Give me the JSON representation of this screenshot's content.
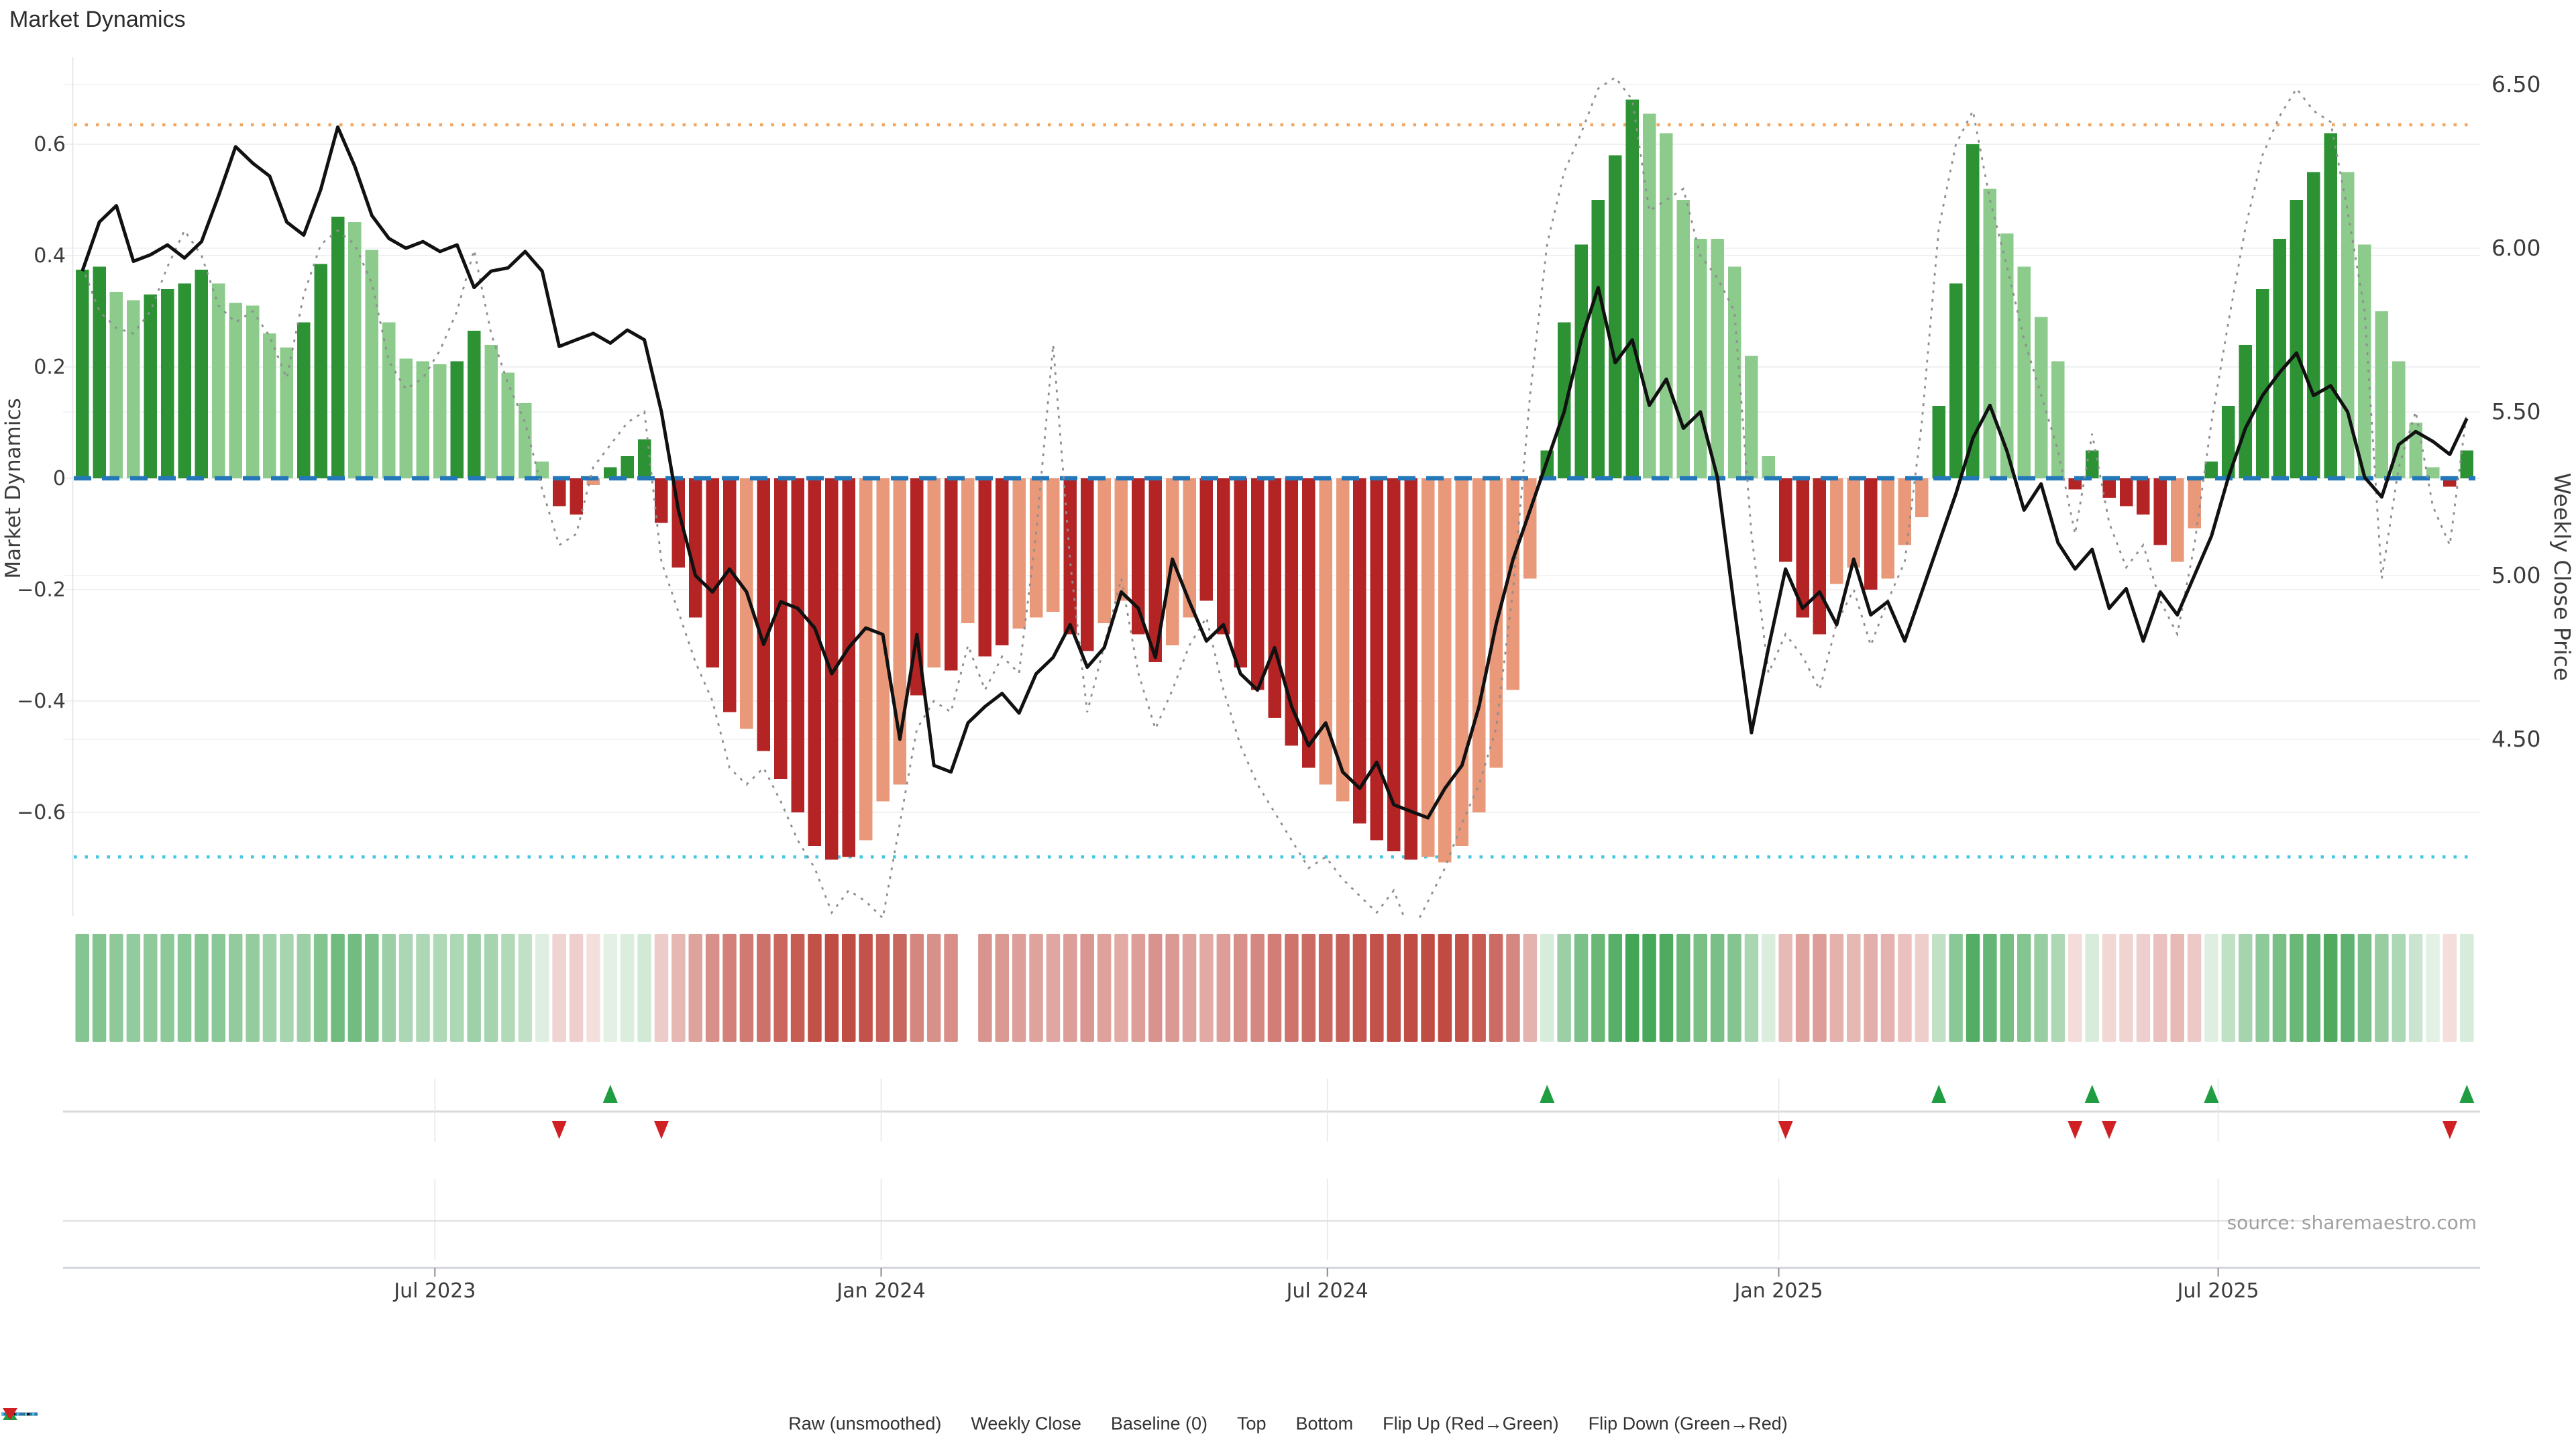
{
  "title": "Market Dynamics",
  "source": "source: sharemaestro.com",
  "axes": {
    "left_title": "Market Dynamics",
    "right_title": "Weekly Close Price",
    "left_ticks": [
      0.6,
      0.4,
      0.2,
      0,
      -0.2,
      -0.4,
      -0.6
    ],
    "right_ticks": [
      6.5,
      6.0,
      5.5,
      5.0,
      4.5
    ]
  },
  "legend": [
    {
      "type": "raw",
      "label": "Raw (unsmoothed)",
      "color": "#8e8e8e"
    },
    {
      "type": "close",
      "label": "Weekly Close",
      "color": "#111111"
    },
    {
      "type": "baseline",
      "label": "Baseline (0)",
      "color": "#2478ba"
    },
    {
      "type": "top",
      "label": "Top",
      "color": "#f3a55f"
    },
    {
      "type": "bottom",
      "label": "Bottom",
      "color": "#41c7e2"
    },
    {
      "type": "flip_up",
      "label": "Flip Up (Red→Green)",
      "color": "#1f9d40"
    },
    {
      "type": "flip_down",
      "label": "Flip Down (Green→Red)",
      "color": "#cf2124"
    }
  ],
  "colors": {
    "bar_green_dark": "#2c9234",
    "bar_green_light": "#8ccb8c",
    "bar_red_dark": "#b42425",
    "bar_red_light": "#e99879",
    "raw_line": "#8e8e8e",
    "close_line": "#111111",
    "baseline": "#2478ba",
    "top_line": "#f3a55f",
    "bottom_line": "#41c7e2",
    "flip_up": "#1f9d40",
    "flip_down": "#cf2124",
    "heat_green_strong": "#3fa352",
    "heat_green_weak": "#eaf5ec",
    "heat_red_strong": "#bf4940",
    "heat_red_weak": "#f6e4e2",
    "grid": "#e9ebee",
    "axis_text": "#3c3c3c",
    "source_text": "#a0a0a0"
  },
  "chart_data": {
    "type": "combo-bar-line",
    "weeks": 141,
    "x_axis": {
      "ticks": [
        {
          "label": "Jul 2023",
          "week": 20.7
        },
        {
          "label": "Jan 2024",
          "week": 46.9
        },
        {
          "label": "Jul 2024",
          "week": 73.1
        },
        {
          "label": "Jan 2025",
          "week": 99.6
        },
        {
          "label": "Jul 2025",
          "week": 125.4
        }
      ]
    },
    "left_axis": {
      "title": "Market Dynamics",
      "ticks": [
        0.6,
        0.4,
        0.2,
        0,
        -0.2,
        -0.4,
        -0.6
      ],
      "range": [
        -0.78,
        0.75
      ]
    },
    "right_axis": {
      "title": "Weekly Close Price",
      "ticks": [
        6.5,
        6.0,
        5.5,
        5.0,
        4.5
      ],
      "range": [
        4.2,
        6.7
      ]
    },
    "reference_lines": {
      "baseline": 0,
      "top": 0.635,
      "bottom": -0.68
    },
    "series": [
      {
        "name": "Market Dynamics (smoothed)",
        "type": "bar",
        "axis": "left",
        "values": [
          0.375,
          0.38,
          0.335,
          0.32,
          0.33,
          0.34,
          0.35,
          0.375,
          0.35,
          0.315,
          0.31,
          0.26,
          0.235,
          0.28,
          0.385,
          0.47,
          0.46,
          0.41,
          0.28,
          0.215,
          0.21,
          0.205,
          0.21,
          0.265,
          0.24,
          0.19,
          0.135,
          0.03,
          -0.05,
          -0.065,
          -0.012,
          0.02,
          0.04,
          0.07,
          -0.08,
          -0.16,
          -0.25,
          -0.34,
          -0.42,
          -0.45,
          -0.49,
          -0.54,
          -0.6,
          -0.66,
          -0.685,
          -0.68,
          -0.65,
          -0.58,
          -0.55,
          -0.39,
          -0.34,
          -0.345,
          -0.26,
          -0.32,
          -0.3,
          -0.27,
          -0.25,
          -0.24,
          -0.28,
          -0.31,
          -0.26,
          -0.22,
          -0.28,
          -0.33,
          -0.3,
          -0.25,
          -0.22,
          -0.28,
          -0.34,
          -0.38,
          -0.43,
          -0.48,
          -0.52,
          -0.55,
          -0.58,
          -0.62,
          -0.65,
          -0.67,
          -0.685,
          -0.68,
          -0.69,
          -0.66,
          -0.6,
          -0.52,
          -0.38,
          -0.18,
          0.05,
          0.28,
          0.42,
          0.5,
          0.58,
          0.68,
          0.655,
          0.62,
          0.5,
          0.43,
          0.43,
          0.38,
          0.22,
          0.04,
          -0.15,
          -0.25,
          -0.28,
          -0.19,
          -0.16,
          -0.2,
          -0.18,
          -0.12,
          -0.07,
          0.13,
          0.35,
          0.6,
          0.52,
          0.44,
          0.38,
          0.29,
          0.21,
          -0.02,
          0.05,
          -0.035,
          -0.05,
          -0.065,
          -0.12,
          -0.15,
          -0.09,
          0.03,
          0.13,
          0.24,
          0.34,
          0.43,
          0.5,
          0.55,
          0.62,
          0.55,
          0.42,
          0.3,
          0.21,
          0.1,
          0.02,
          -0.015,
          0.05
        ],
        "shade_segments": [
          "ddllddddllllldddllllllddllll",
          "ddlddd",
          "dddddldddddd",
          "lll",
          "d",
          "ldld",
          "dlll",
          "ddll",
          "ddll",
          "ddddddd",
          "ll",
          "dddd",
          "lllllll",
          "ddddddllllllll",
          "dddlldlll",
          "dddlllll",
          "ddddddll",
          "ddddddddllllll",
          "dd"
        ]
      },
      {
        "name": "Raw (unsmoothed)",
        "type": "line",
        "axis": "left",
        "values": [
          0.38,
          0.3,
          0.27,
          0.26,
          0.3,
          0.38,
          0.445,
          0.4,
          0.31,
          0.28,
          0.3,
          0.255,
          0.18,
          0.33,
          0.42,
          0.445,
          0.42,
          0.35,
          0.21,
          0.16,
          0.18,
          0.23,
          0.3,
          0.41,
          0.26,
          0.17,
          0.1,
          -0.02,
          -0.12,
          -0.1,
          0.02,
          0.06,
          0.1,
          0.12,
          -0.15,
          -0.24,
          -0.33,
          -0.4,
          -0.52,
          -0.55,
          -0.52,
          -0.58,
          -0.65,
          -0.7,
          -0.78,
          -0.74,
          -0.76,
          -0.79,
          -0.62,
          -0.45,
          -0.4,
          -0.42,
          -0.3,
          -0.38,
          -0.32,
          -0.35,
          -0.1,
          0.24,
          -0.15,
          -0.42,
          -0.3,
          -0.18,
          -0.35,
          -0.45,
          -0.38,
          -0.3,
          -0.25,
          -0.38,
          -0.48,
          -0.55,
          -0.6,
          -0.65,
          -0.7,
          -0.68,
          -0.72,
          -0.75,
          -0.78,
          -0.74,
          -0.82,
          -0.76,
          -0.7,
          -0.62,
          -0.55,
          -0.45,
          -0.2,
          0.15,
          0.42,
          0.55,
          0.62,
          0.7,
          0.72,
          0.68,
          0.48,
          0.5,
          0.52,
          0.4,
          0.36,
          0.3,
          -0.1,
          -0.35,
          -0.28,
          -0.32,
          -0.38,
          -0.26,
          -0.2,
          -0.3,
          -0.22,
          -0.15,
          0.1,
          0.45,
          0.6,
          0.66,
          0.5,
          0.38,
          0.25,
          0.15,
          0.05,
          -0.1,
          0.08,
          -0.08,
          -0.16,
          -0.12,
          -0.22,
          -0.28,
          -0.12,
          0.1,
          0.28,
          0.45,
          0.58,
          0.65,
          0.7,
          0.66,
          0.64,
          0.48,
          0.3,
          -0.18,
          0.02,
          0.12,
          -0.05,
          -0.12,
          0.12
        ]
      },
      {
        "name": "Weekly Close",
        "type": "line",
        "axis": "right",
        "values": [
          5.93,
          6.08,
          6.13,
          5.96,
          5.98,
          6.01,
          5.97,
          6.02,
          6.16,
          6.31,
          6.26,
          6.22,
          6.08,
          6.04,
          6.18,
          6.37,
          6.25,
          6.1,
          6.03,
          6.0,
          6.02,
          5.99,
          6.01,
          5.88,
          5.93,
          5.94,
          5.99,
          5.93,
          5.7,
          5.72,
          5.74,
          5.71,
          5.75,
          5.72,
          5.5,
          5.2,
          5.0,
          4.95,
          5.02,
          4.95,
          4.79,
          4.92,
          4.9,
          4.84,
          4.7,
          4.78,
          4.84,
          4.82,
          4.5,
          4.82,
          4.42,
          4.4,
          4.55,
          4.6,
          4.64,
          4.58,
          4.7,
          4.75,
          4.85,
          4.72,
          4.78,
          4.95,
          4.9,
          4.75,
          5.05,
          4.92,
          4.8,
          4.85,
          4.7,
          4.65,
          4.78,
          4.6,
          4.48,
          4.55,
          4.4,
          4.35,
          4.43,
          4.3,
          4.28,
          4.26,
          4.35,
          4.42,
          4.6,
          4.85,
          5.05,
          5.2,
          5.35,
          5.5,
          5.72,
          5.88,
          5.65,
          5.72,
          5.52,
          5.6,
          5.45,
          5.5,
          5.3,
          4.9,
          4.52,
          4.78,
          5.02,
          4.9,
          4.95,
          4.85,
          5.05,
          4.88,
          4.92,
          4.8,
          4.95,
          5.1,
          5.25,
          5.42,
          5.52,
          5.38,
          5.2,
          5.28,
          5.1,
          5.02,
          5.08,
          4.9,
          4.96,
          4.8,
          4.95,
          4.88,
          5.0,
          5.12,
          5.3,
          5.45,
          5.55,
          5.62,
          5.68,
          5.55,
          5.58,
          5.5,
          5.3,
          5.24,
          5.4,
          5.44,
          5.41,
          5.37,
          5.48
        ]
      }
    ],
    "heatmap": {
      "gap_index": 52
    },
    "flips": {
      "up": [
        31,
        86,
        109,
        118,
        125,
        140
      ],
      "down": [
        28,
        34,
        100,
        117,
        119,
        139
      ]
    }
  }
}
